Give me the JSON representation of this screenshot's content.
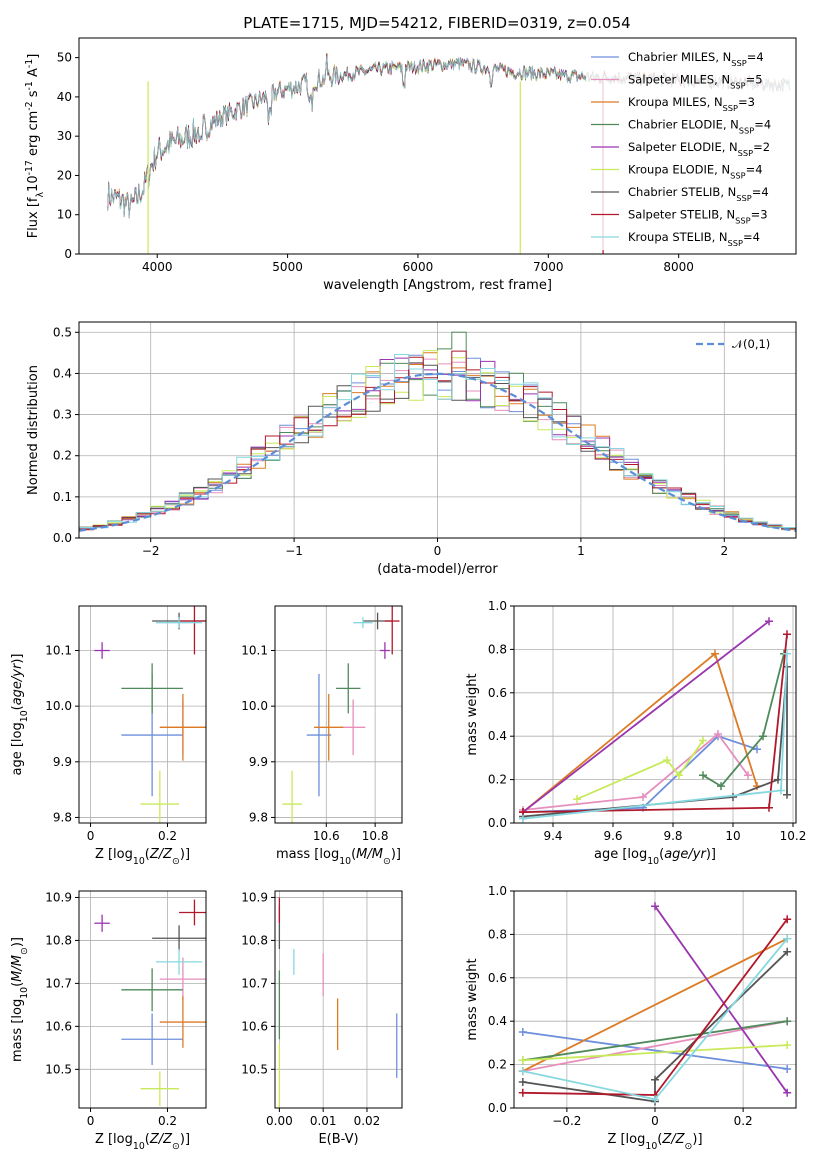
{
  "figure_title": "PLATE=1715, MJD=54212, FIBERID=0319, z=0.054",
  "colors": {
    "Chabrier MILES": "#6d8fdc",
    "Salpeter MILES": "#e68fbd",
    "Kroupa MILES": "#dd7b25",
    "Chabrier ELODIE": "#4f8a5a",
    "Salpeter ELODIE": "#9a35b0",
    "Kroupa ELODIE": "#c8ea5a",
    "Chabrier STELIB": "#555555",
    "Salpeter STELIB": "#b2182b",
    "Kroupa STELIB": "#86d8e0",
    "normal": "#5b8ed8"
  },
  "chart_data": [
    {
      "id": "spectrum",
      "type": "line",
      "title": "PLATE=1715, MJD=54212, FIBERID=0319, z=0.054",
      "xlabel": "wavelength [Angstrom, rest frame]",
      "ylabel": "Flux [f$_\\lambda$10$^{-17}$ erg cm$^{-2}$ s$^{-1}$ A$^{-1}$]",
      "xlim": [
        3400,
        8900
      ],
      "ylim": [
        0,
        55
      ],
      "xticks": [
        4000,
        5000,
        6000,
        7000,
        8000
      ],
      "yticks": [
        0,
        10,
        20,
        30,
        40,
        50
      ],
      "grid": false,
      "legend": "right",
      "series": [
        {
          "name": "Chabrier MILES, N$_{SSP}$=4"
        },
        {
          "name": "Salpeter MILES, N$_{SSP}$=5"
        },
        {
          "name": "Kroupa MILES, N$_{SSP}$=3"
        },
        {
          "name": "Chabrier ELODIE, N$_{SSP}$=4"
        },
        {
          "name": "Salpeter ELODIE, N$_{SSP}$=2"
        },
        {
          "name": "Kroupa ELODIE, N$_{SSP}$=4"
        },
        {
          "name": "Chabrier STELIB, N$_{SSP}$=4"
        },
        {
          "name": "Salpeter STELIB, N$_{SSP}$=3"
        },
        {
          "name": "Kroupa STELIB, N$_{SSP}$=4"
        }
      ],
      "continuum": {
        "x": [
          3620,
          3700,
          3800,
          3900,
          3950,
          4000,
          4100,
          4300,
          4500,
          4700,
          4900,
          5100,
          5300,
          5500,
          5700,
          5900,
          6100,
          6300,
          6500,
          6700,
          6900,
          7100,
          7300,
          7500,
          7700,
          7900,
          8100,
          8300,
          8500,
          8800
        ],
        "y": [
          15,
          14,
          12,
          17,
          22,
          26,
          28,
          31,
          35,
          38,
          41,
          43,
          45,
          46,
          47,
          47.5,
          48,
          48.5,
          47.5,
          46.5,
          46,
          45.5,
          45,
          45,
          44.5,
          44.5,
          44,
          44,
          43.5,
          43
        ]
      }
    },
    {
      "id": "residuals",
      "type": "histogram",
      "xlabel": "(data-model)/error",
      "ylabel": "Normed distribution",
      "xlim": [
        -2.5,
        2.5
      ],
      "ylim": [
        0,
        0.525
      ],
      "xticks": [
        -2,
        -1,
        0,
        1,
        2
      ],
      "yticks": [
        0.0,
        0.1,
        0.2,
        0.3,
        0.4,
        0.5
      ],
      "grid": true,
      "legend": "top-right",
      "normal_label": "$\\mathcal{N}(0,1)$",
      "bin_width": 0.1
    },
    {
      "id": "age-vs-Z",
      "type": "scatter",
      "xlabel": "Z [log$_{10}$($Z/Z_\\odot$)]",
      "ylabel": "age  [log$_{10}$($age/yr$)]",
      "xlim": [
        -0.03,
        0.3
      ],
      "ylim": [
        9.79,
        10.18
      ],
      "xticks": [
        0.0,
        0.2
      ],
      "yticks": [
        9.8,
        9.9,
        10.0,
        10.1
      ],
      "grid": true,
      "points": [
        {
          "series": "Chabrier MILES",
          "x": 0.16,
          "y": 9.948,
          "xerr": 0.08,
          "yerr": 0.11
        },
        {
          "series": "Salpeter MILES",
          "x": 0.24,
          "y": 9.962,
          "xerr": 0.06,
          "yerr": 0.05
        },
        {
          "series": "Kroupa MILES",
          "x": 0.24,
          "y": 9.962,
          "xerr": 0.06,
          "yerr": 0.06
        },
        {
          "series": "Chabrier ELODIE",
          "x": 0.16,
          "y": 10.032,
          "xerr": 0.08,
          "yerr": 0.045
        },
        {
          "series": "Salpeter ELODIE",
          "x": 0.03,
          "y": 10.1,
          "xerr": 0.02,
          "yerr": 0.015
        },
        {
          "series": "Kroupa ELODIE",
          "x": 0.18,
          "y": 9.824,
          "xerr": 0.05,
          "yerr": 0.06
        },
        {
          "series": "Chabrier STELIB",
          "x": 0.23,
          "y": 10.153,
          "xerr": 0.07,
          "yerr": 0.015
        },
        {
          "series": "Salpeter STELIB",
          "x": 0.27,
          "y": 10.153,
          "xerr": 0.04,
          "yerr": 0.06
        },
        {
          "series": "Kroupa STELIB",
          "x": 0.23,
          "y": 10.15,
          "xerr": 0.06,
          "yerr": 0.01
        }
      ]
    },
    {
      "id": "age-vs-mass",
      "type": "scatter",
      "xlabel": "mass [log$_{10}$($M/M_\\odot$)]",
      "ylabel": "",
      "xlim": [
        10.39,
        10.91
      ],
      "ylim": [
        9.79,
        10.18
      ],
      "xticks": [
        10.6,
        10.8
      ],
      "yticks": [
        9.8,
        9.9,
        10.0,
        10.1
      ],
      "grid": true,
      "points": [
        {
          "series": "Chabrier MILES",
          "x": 10.57,
          "y": 9.948,
          "xerr": 0.05,
          "yerr": 0.11
        },
        {
          "series": "Salpeter MILES",
          "x": 10.71,
          "y": 9.962,
          "xerr": 0.05,
          "yerr": 0.05
        },
        {
          "series": "Kroupa MILES",
          "x": 10.61,
          "y": 9.962,
          "xerr": 0.06,
          "yerr": 0.06
        },
        {
          "series": "Chabrier ELODIE",
          "x": 10.69,
          "y": 10.032,
          "xerr": 0.05,
          "yerr": 0.045
        },
        {
          "series": "Salpeter ELODIE",
          "x": 10.84,
          "y": 10.1,
          "xerr": 0.02,
          "yerr": 0.015
        },
        {
          "series": "Kroupa ELODIE",
          "x": 10.46,
          "y": 9.824,
          "xerr": 0.04,
          "yerr": 0.06
        },
        {
          "series": "Chabrier STELIB",
          "x": 10.81,
          "y": 10.153,
          "xerr": 0.06,
          "yerr": 0.015
        },
        {
          "series": "Salpeter STELIB",
          "x": 10.87,
          "y": 10.153,
          "xerr": 0.03,
          "yerr": 0.06
        },
        {
          "series": "Kroupa STELIB",
          "x": 10.75,
          "y": 10.15,
          "xerr": 0.04,
          "yerr": 0.01
        }
      ]
    },
    {
      "id": "weight-vs-age",
      "type": "line",
      "xlabel": "age  [log$_{10}$($age/yr$)]",
      "ylabel": "mass weight",
      "xlim": [
        9.27,
        10.21
      ],
      "ylim": [
        0,
        1.0
      ],
      "xticks": [
        9.4,
        9.6,
        9.8,
        10.0,
        10.2
      ],
      "yticks": [
        0.0,
        0.2,
        0.4,
        0.6,
        0.8,
        1.0
      ],
      "grid": true,
      "series": [
        {
          "name": "Chabrier MILES",
          "x": [
            9.3,
            9.7,
            9.95,
            10.08
          ],
          "y": [
            0.05,
            0.07,
            0.4,
            0.34
          ]
        },
        {
          "name": "Salpeter MILES",
          "x": [
            9.3,
            9.7,
            9.95,
            10.05
          ],
          "y": [
            0.06,
            0.12,
            0.41,
            0.22
          ]
        },
        {
          "name": "Kroupa MILES",
          "x": [
            9.3,
            9.94,
            10.08
          ],
          "y": [
            0.05,
            0.78,
            0.17
          ]
        },
        {
          "name": "Chabrier ELODIE",
          "x": [
            9.9,
            9.96,
            10.1,
            10.17
          ],
          "y": [
            0.22,
            0.17,
            0.4,
            0.78
          ]
        },
        {
          "name": "Salpeter ELODIE",
          "x": [
            9.3,
            10.12
          ],
          "y": [
            0.05,
            0.93
          ]
        },
        {
          "name": "Kroupa ELODIE",
          "x": [
            9.48,
            9.78,
            9.82,
            9.9
          ],
          "y": [
            0.11,
            0.29,
            0.22,
            0.38
          ]
        },
        {
          "name": "Chabrier STELIB",
          "x": [
            9.3,
            10.0,
            10.15,
            10.18,
            10.18
          ],
          "y": [
            0.03,
            0.12,
            0.2,
            0.72,
            0.13
          ]
        },
        {
          "name": "Salpeter STELIB",
          "x": [
            9.3,
            10.12,
            10.18
          ],
          "y": [
            0.05,
            0.07,
            0.87
          ]
        },
        {
          "name": "Kroupa STELIB",
          "x": [
            9.3,
            10.16,
            10.18
          ],
          "y": [
            0.02,
            0.15,
            0.78
          ]
        }
      ]
    },
    {
      "id": "mass-vs-Z",
      "type": "scatter",
      "xlabel": "Z [log$_{10}$($Z/Z_\\odot$)]",
      "ylabel": "mass [log$_{10}$($M/M_\\odot$)]",
      "xlim": [
        -0.03,
        0.3
      ],
      "ylim": [
        10.41,
        10.915
      ],
      "xticks": [
        0.0,
        0.2
      ],
      "yticks": [
        10.5,
        10.6,
        10.7,
        10.8,
        10.9
      ],
      "grid": true,
      "points": [
        {
          "series": "Chabrier MILES",
          "x": 0.16,
          "y": 10.57,
          "xerr": 0.08,
          "yerr": 0.06
        },
        {
          "series": "Salpeter MILES",
          "x": 0.24,
          "y": 10.71,
          "xerr": 0.06,
          "yerr": 0.05
        },
        {
          "series": "Kroupa MILES",
          "x": 0.24,
          "y": 10.61,
          "xerr": 0.06,
          "yerr": 0.06
        },
        {
          "series": "Chabrier ELODIE",
          "x": 0.16,
          "y": 10.685,
          "xerr": 0.08,
          "yerr": 0.05
        },
        {
          "series": "Salpeter ELODIE",
          "x": 0.03,
          "y": 10.84,
          "xerr": 0.02,
          "yerr": 0.02
        },
        {
          "series": "Kroupa ELODIE",
          "x": 0.18,
          "y": 10.455,
          "xerr": 0.05,
          "yerr": 0.04
        },
        {
          "series": "Chabrier STELIB",
          "x": 0.23,
          "y": 10.805,
          "xerr": 0.07,
          "yerr": 0.03
        },
        {
          "series": "Salpeter STELIB",
          "x": 0.27,
          "y": 10.865,
          "xerr": 0.04,
          "yerr": 0.03
        },
        {
          "series": "Kroupa STELIB",
          "x": 0.23,
          "y": 10.75,
          "xerr": 0.06,
          "yerr": 0.03
        }
      ]
    },
    {
      "id": "mass-vs-EBV",
      "type": "scatter",
      "xlabel": "E(B-V)",
      "ylabel": "",
      "xlim": [
        -0.001,
        0.028
      ],
      "ylim": [
        10.41,
        10.915
      ],
      "xticks": [
        0.0,
        0.01,
        0.02
      ],
      "xticklabels": [
        "0.00",
        "0.01",
        "0.02"
      ],
      "yticks": [
        10.5,
        10.6,
        10.7,
        10.8,
        10.9
      ],
      "grid": true,
      "points": [
        {
          "series": "Chabrier MILES",
          "x": 0.0268,
          "y": 10.555,
          "xerr": 0.0,
          "yerr": 0.075
        },
        {
          "series": "Salpeter MILES",
          "x": 0.01,
          "y": 10.72,
          "xerr": 0.0,
          "yerr": 0.05
        },
        {
          "series": "Kroupa MILES",
          "x": 0.0133,
          "y": 10.605,
          "xerr": 0.0,
          "yerr": 0.06
        },
        {
          "series": "Chabrier ELODIE",
          "x": 0.0,
          "y": 10.65,
          "xerr": 0.0,
          "yerr": 0.08
        },
        {
          "series": "Salpeter ELODIE",
          "x": 0.0,
          "y": 10.86,
          "xerr": 0.0,
          "yerr": 0.02
        },
        {
          "series": "Kroupa ELODIE",
          "x": 0.0,
          "y": 10.485,
          "xerr": 0.0,
          "yerr": 0.075
        },
        {
          "series": "Chabrier STELIB",
          "x": 0.0,
          "y": 10.81,
          "xerr": 0.0,
          "yerr": 0.03
        },
        {
          "series": "Salpeter STELIB",
          "x": 0.0,
          "y": 10.87,
          "xerr": 0.0,
          "yerr": 0.03
        },
        {
          "series": "Kroupa STELIB",
          "x": 0.0033,
          "y": 10.75,
          "xerr": 0.0,
          "yerr": 0.03
        }
      ]
    },
    {
      "id": "weight-vs-Z",
      "type": "line",
      "xlabel": "Z [log$_{10}$($Z/Z_\\odot$)]",
      "ylabel": "mass weight",
      "xlim": [
        -0.32,
        0.32
      ],
      "ylim": [
        0,
        1.0
      ],
      "xticks": [
        -0.2,
        0.0,
        0.2
      ],
      "yticks": [
        0.0,
        0.2,
        0.4,
        0.6,
        0.8,
        1.0
      ],
      "grid": true,
      "series": [
        {
          "name": "Chabrier MILES",
          "x": [
            -0.3,
            0.3
          ],
          "y": [
            0.35,
            0.18
          ]
        },
        {
          "name": "Salpeter MILES",
          "x": [
            -0.3,
            0.3
          ],
          "y": [
            0.17,
            0.4
          ]
        },
        {
          "name": "Kroupa MILES",
          "x": [
            -0.3,
            0.3
          ],
          "y": [
            0.17,
            0.78
          ]
        },
        {
          "name": "Chabrier ELODIE",
          "x": [
            -0.3,
            0.3
          ],
          "y": [
            0.22,
            0.4
          ]
        },
        {
          "name": "Salpeter ELODIE",
          "x": [
            0.0,
            0.3
          ],
          "y": [
            0.93,
            0.07
          ]
        },
        {
          "name": "Kroupa ELODIE",
          "x": [
            -0.3,
            0.3
          ],
          "y": [
            0.22,
            0.29
          ]
        },
        {
          "name": "Chabrier STELIB",
          "x": [
            -0.3,
            0.0,
            0.0,
            0.3
          ],
          "y": [
            0.12,
            0.03,
            0.13,
            0.72
          ]
        },
        {
          "name": "Salpeter STELIB",
          "x": [
            -0.3,
            0.0,
            0.3
          ],
          "y": [
            0.07,
            0.06,
            0.87
          ]
        },
        {
          "name": "Kroupa STELIB",
          "x": [
            -0.3,
            0.0,
            0.3
          ],
          "y": [
            0.17,
            0.04,
            0.78
          ]
        }
      ]
    }
  ]
}
